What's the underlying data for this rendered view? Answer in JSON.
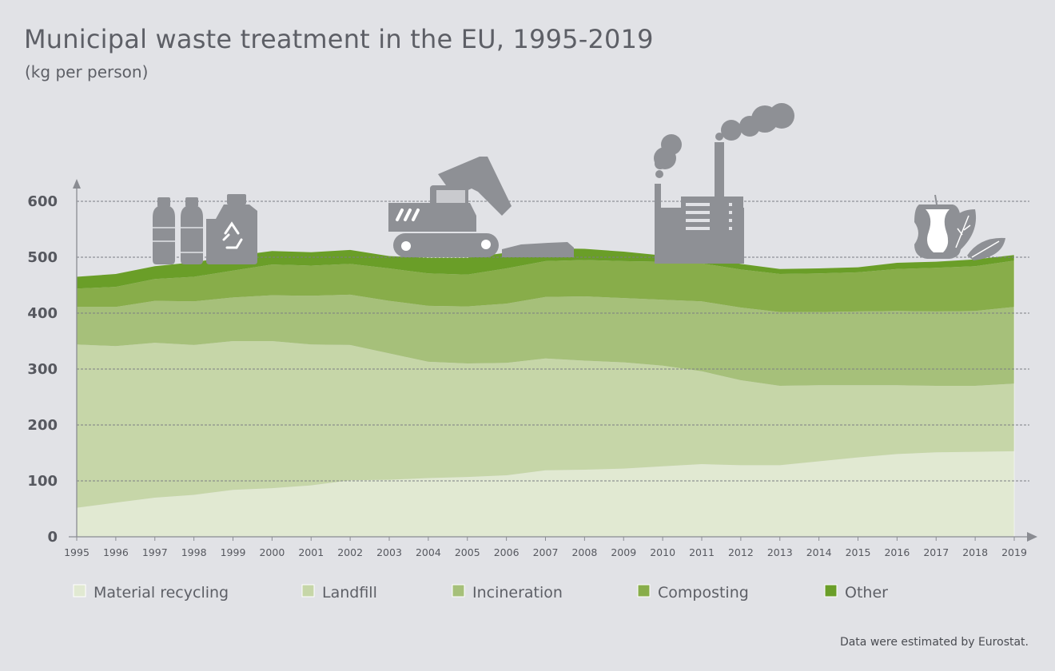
{
  "title": "Municipal waste treatment in the EU, 1995-2019",
  "subtitle": "(kg per person)",
  "source_note": "Data were estimated by Eurostat.",
  "icons": [
    "recycling-bottles-icon",
    "bulldozer-icon",
    "factory-icon",
    "organic-waste-icon"
  ],
  "chart_data": {
    "type": "area",
    "stacked": true,
    "x": [
      1995,
      1996,
      1997,
      1998,
      1999,
      2000,
      2001,
      2002,
      2003,
      2004,
      2005,
      2006,
      2007,
      2008,
      2009,
      2010,
      2011,
      2012,
      2013,
      2014,
      2015,
      2016,
      2017,
      2018,
      2019
    ],
    "yticks": [
      0,
      100,
      200,
      300,
      400,
      500,
      600
    ],
    "ylim": [
      0,
      600
    ],
    "grid": "horizontal dashed",
    "legend_position": "bottom",
    "series": [
      {
        "name": "Material recycling",
        "color": "#e1e9d2",
        "values": [
          52,
          61,
          70,
          75,
          84,
          87,
          92,
          101,
          102,
          105,
          107,
          110,
          119,
          120,
          122,
          126,
          130,
          128,
          128,
          135,
          142,
          148,
          151,
          152,
          153
        ]
      },
      {
        "name": "Landfill",
        "color": "#c6d6a8",
        "values": [
          292,
          280,
          277,
          268,
          266,
          263,
          252,
          242,
          226,
          208,
          203,
          201,
          200,
          195,
          190,
          180,
          166,
          152,
          142,
          136,
          129,
          123,
          119,
          118,
          121
        ]
      },
      {
        "name": "Incineration",
        "color": "#a6c07a",
        "values": [
          67,
          70,
          75,
          78,
          78,
          82,
          87,
          90,
          94,
          100,
          102,
          106,
          110,
          115,
          115,
          118,
          125,
          130,
          132,
          131,
          132,
          133,
          133,
          134,
          137
        ]
      },
      {
        "name": "Composting",
        "color": "#88ad4a",
        "values": [
          33,
          36,
          39,
          44,
          48,
          55,
          54,
          55,
          58,
          58,
          57,
          63,
          64,
          65,
          66,
          68,
          68,
          68,
          68,
          69,
          70,
          75,
          78,
          80,
          83
        ]
      },
      {
        "name": "Other",
        "color": "#6a9e28",
        "values": [
          21,
          23,
          23,
          26,
          26,
          24,
          24,
          25,
          22,
          28,
          30,
          28,
          23,
          20,
          17,
          11,
          10,
          10,
          9,
          9,
          9,
          11,
          11,
          12,
          10
        ]
      }
    ]
  }
}
